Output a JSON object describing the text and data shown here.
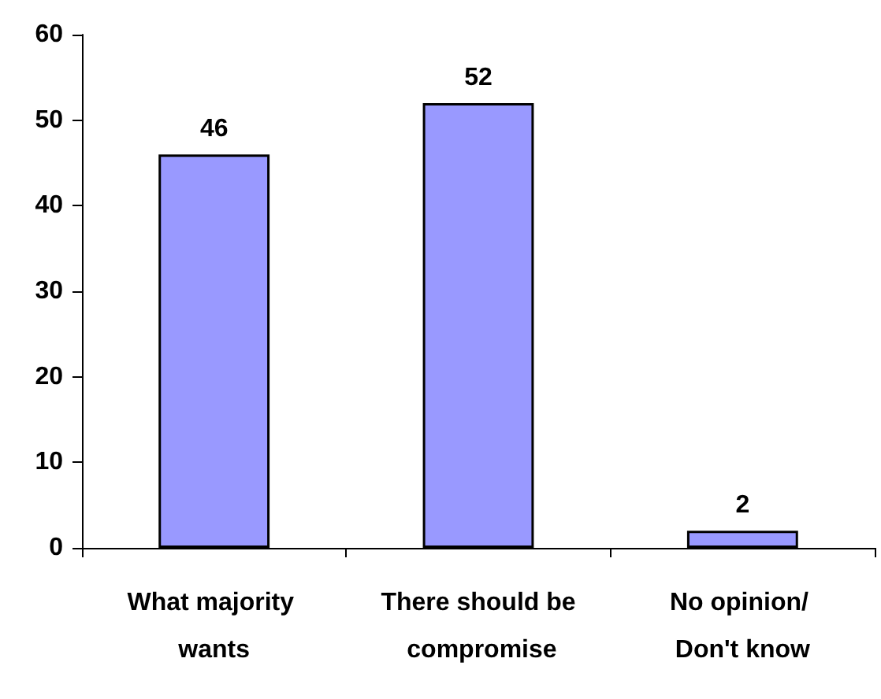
{
  "chart_data": {
    "type": "bar",
    "categories": [
      "What majority wants",
      "There should be compromise",
      "No opinion/ Don't know"
    ],
    "values": [
      46,
      52,
      2
    ],
    "color": "#9999ff",
    "ylim": [
      0,
      60
    ],
    "yticks": [
      0,
      10,
      20,
      30,
      40,
      50,
      60
    ],
    "grid": false,
    "data_labels": true
  }
}
